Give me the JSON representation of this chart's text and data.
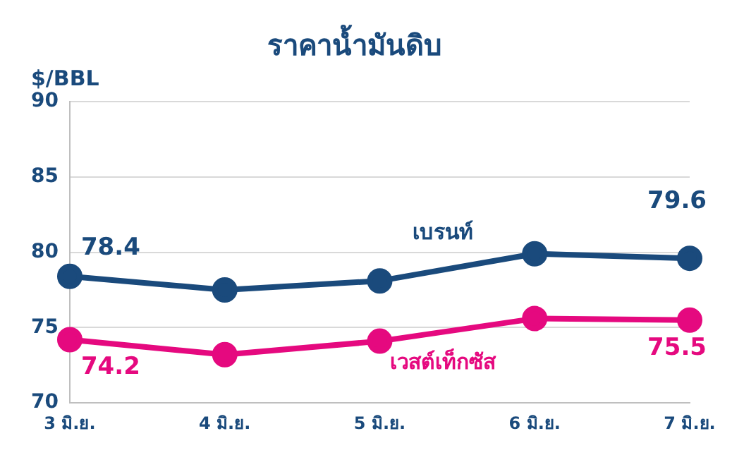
{
  "chart_data": {
    "type": "line",
    "title": "ราคาน้ำมันดิบ",
    "ylabel": "$/BBL",
    "categories": [
      "3 มิ.ย.",
      "4 มิ.ย.",
      "5 มิ.ย.",
      "6 มิ.ย.",
      "7 มิ.ย."
    ],
    "series": [
      {
        "name": "เบรนท์",
        "color": "#1a4a7c",
        "values": [
          78.4,
          77.5,
          78.1,
          79.9,
          79.6
        ],
        "value_labels": [
          "78.4",
          null,
          null,
          null,
          "79.6"
        ]
      },
      {
        "name": "เวสต์เท็กซัส",
        "color": "#e5097f",
        "values": [
          74.2,
          73.2,
          74.1,
          75.6,
          75.5
        ],
        "value_labels": [
          "74.2",
          null,
          null,
          null,
          "75.5"
        ]
      }
    ],
    "ylim": [
      70,
      90
    ],
    "yticks": [
      70,
      75,
      80,
      85,
      90
    ],
    "grid": "y",
    "legend": false,
    "marker": "circle",
    "line_style": "solid"
  }
}
